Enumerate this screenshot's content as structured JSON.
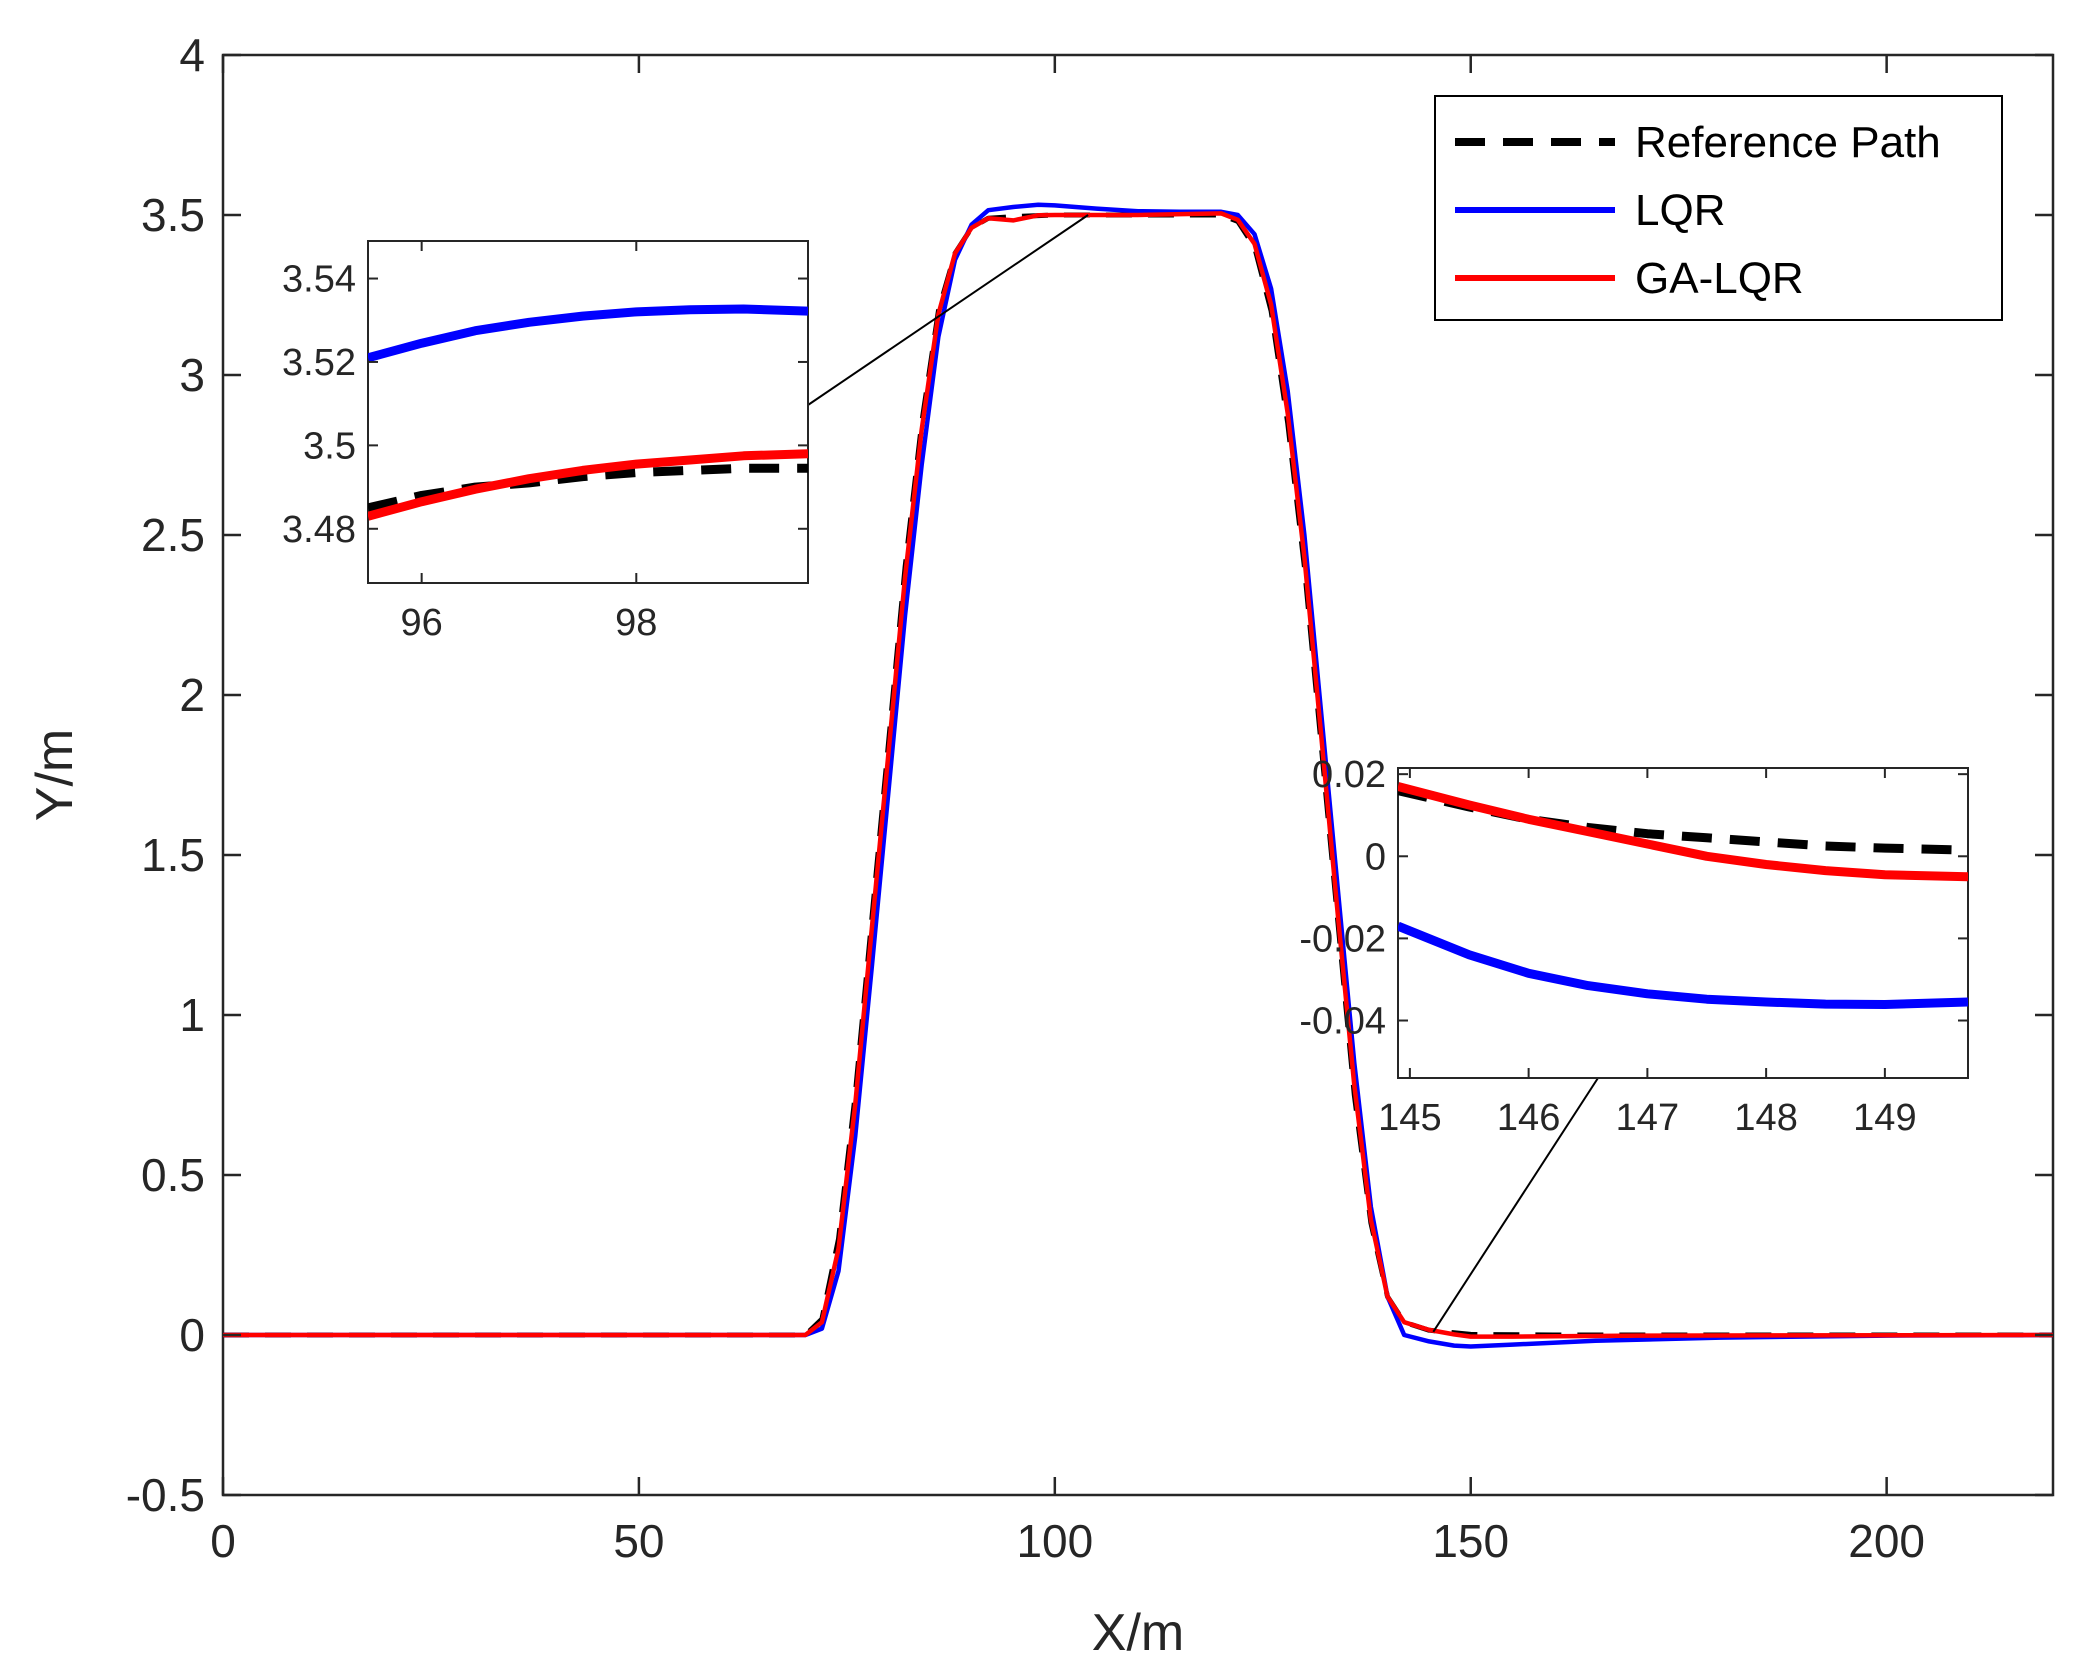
{
  "chart_data": {
    "type": "line",
    "title": "",
    "xlabel": "X/m",
    "ylabel": "Y/m",
    "xlim": [
      0,
      220
    ],
    "ylim": [
      -0.5,
      4
    ],
    "xticks": [
      0,
      50,
      100,
      150,
      200
    ],
    "xtick_labels": [
      "0",
      "50",
      "100",
      "150",
      "200"
    ],
    "yticks": [
      -0.5,
      0,
      0.5,
      1,
      1.5,
      2,
      2.5,
      3,
      3.5,
      4
    ],
    "ytick_labels": [
      "-0.5",
      "0",
      "0.5",
      "1",
      "1.5",
      "2",
      "2.5",
      "3",
      "3.5",
      "4"
    ],
    "grid": false,
    "legend_position": "top-right",
    "series": [
      {
        "name": "Reference Path",
        "color": "#000000",
        "style": "dashed",
        "points": [
          [
            0,
            0
          ],
          [
            70,
            0
          ],
          [
            72,
            0.05
          ],
          [
            74,
            0.3
          ],
          [
            76,
            0.75
          ],
          [
            78,
            1.3
          ],
          [
            80,
            1.85
          ],
          [
            82,
            2.4
          ],
          [
            84,
            2.85
          ],
          [
            86,
            3.2
          ],
          [
            88,
            3.38
          ],
          [
            90,
            3.46
          ],
          [
            92,
            3.49
          ],
          [
            95,
            3.495
          ],
          [
            100,
            3.5
          ],
          [
            110,
            3.5
          ],
          [
            120,
            3.5
          ],
          [
            122,
            3.48
          ],
          [
            124,
            3.4
          ],
          [
            126,
            3.2
          ],
          [
            128,
            2.85
          ],
          [
            130,
            2.4
          ],
          [
            132,
            1.85
          ],
          [
            134,
            1.3
          ],
          [
            136,
            0.75
          ],
          [
            138,
            0.35
          ],
          [
            140,
            0.12
          ],
          [
            142,
            0.04
          ],
          [
            145,
            0.015
          ],
          [
            150,
            0.002
          ],
          [
            160,
            0
          ],
          [
            220,
            0
          ]
        ]
      },
      {
        "name": "LQR",
        "color": "#0000ff",
        "style": "solid",
        "points": [
          [
            0,
            0
          ],
          [
            70,
            0
          ],
          [
            72,
            0.02
          ],
          [
            74,
            0.2
          ],
          [
            76,
            0.62
          ],
          [
            78,
            1.15
          ],
          [
            80,
            1.7
          ],
          [
            82,
            2.25
          ],
          [
            84,
            2.72
          ],
          [
            86,
            3.12
          ],
          [
            88,
            3.36
          ],
          [
            90,
            3.47
          ],
          [
            92,
            3.515
          ],
          [
            95,
            3.525
          ],
          [
            98,
            3.532
          ],
          [
            100,
            3.53
          ],
          [
            105,
            3.52
          ],
          [
            110,
            3.512
          ],
          [
            115,
            3.51
          ],
          [
            120,
            3.51
          ],
          [
            122,
            3.5
          ],
          [
            124,
            3.44
          ],
          [
            126,
            3.27
          ],
          [
            128,
            2.95
          ],
          [
            130,
            2.5
          ],
          [
            132,
            1.95
          ],
          [
            134,
            1.4
          ],
          [
            136,
            0.85
          ],
          [
            138,
            0.4
          ],
          [
            140,
            0.12
          ],
          [
            142,
            0.0
          ],
          [
            145,
            -0.02
          ],
          [
            148,
            -0.033
          ],
          [
            150,
            -0.036
          ],
          [
            155,
            -0.03
          ],
          [
            165,
            -0.018
          ],
          [
            180,
            -0.008
          ],
          [
            200,
            -0.002
          ],
          [
            220,
            0
          ]
        ]
      },
      {
        "name": "GA-LQR",
        "color": "#ff0000",
        "style": "solid",
        "points": [
          [
            0,
            0
          ],
          [
            70,
            0
          ],
          [
            72,
            0.04
          ],
          [
            74,
            0.27
          ],
          [
            76,
            0.72
          ],
          [
            78,
            1.27
          ],
          [
            80,
            1.82
          ],
          [
            82,
            2.37
          ],
          [
            84,
            2.83
          ],
          [
            86,
            3.19
          ],
          [
            88,
            3.38
          ],
          [
            90,
            3.46
          ],
          [
            92,
            3.49
          ],
          [
            95,
            3.483
          ],
          [
            98,
            3.499
          ],
          [
            100,
            3.5
          ],
          [
            110,
            3.5
          ],
          [
            120,
            3.505
          ],
          [
            122,
            3.485
          ],
          [
            124,
            3.41
          ],
          [
            126,
            3.22
          ],
          [
            128,
            2.88
          ],
          [
            130,
            2.43
          ],
          [
            132,
            1.88
          ],
          [
            134,
            1.32
          ],
          [
            136,
            0.78
          ],
          [
            138,
            0.36
          ],
          [
            140,
            0.12
          ],
          [
            142,
            0.04
          ],
          [
            145,
            0.016
          ],
          [
            148,
            0.002
          ],
          [
            150,
            -0.005
          ],
          [
            155,
            -0.005
          ],
          [
            170,
            -0.002
          ],
          [
            220,
            0
          ]
        ]
      }
    ],
    "insets": [
      {
        "name": "inset-upper",
        "xlim": [
          95.5,
          99.6
        ],
        "ylim": [
          3.467,
          3.549
        ],
        "xticks": [
          96,
          98
        ],
        "xtick_labels": [
          "96",
          "98"
        ],
        "yticks": [
          3.48,
          3.5,
          3.52,
          3.54
        ],
        "ytick_labels": [
          "3.48",
          "3.5",
          "3.52",
          "3.54"
        ],
        "anchor_point": [
          104,
          3.5
        ],
        "series": {
          "Reference Path": [
            [
              95.5,
              3.485
            ],
            [
              96,
              3.488
            ],
            [
              96.5,
              3.49
            ],
            [
              97,
              3.491
            ],
            [
              97.5,
              3.4925
            ],
            [
              98,
              3.4935
            ],
            [
              98.5,
              3.494
            ],
            [
              99,
              3.4945
            ],
            [
              99.6,
              3.4945
            ]
          ],
          "LQR": [
            [
              95.5,
              3.521
            ],
            [
              96,
              3.5245
            ],
            [
              96.5,
              3.5275
            ],
            [
              97,
              3.5295
            ],
            [
              97.5,
              3.531
            ],
            [
              98,
              3.532
            ],
            [
              98.5,
              3.5325
            ],
            [
              99,
              3.5327
            ],
            [
              99.6,
              3.5322
            ]
          ],
          "GA-LQR": [
            [
              95.5,
              3.483
            ],
            [
              96,
              3.4865
            ],
            [
              96.5,
              3.4895
            ],
            [
              97,
              3.492
            ],
            [
              97.5,
              3.494
            ],
            [
              98,
              3.4955
            ],
            [
              98.5,
              3.4965
            ],
            [
              99,
              3.4975
            ],
            [
              99.6,
              3.498
            ]
          ]
        }
      },
      {
        "name": "inset-lower",
        "xlim": [
          144.9,
          149.7
        ],
        "ylim": [
          -0.054,
          0.0215
        ],
        "xticks": [
          145,
          146,
          147,
          148,
          149
        ],
        "xtick_labels": [
          "145",
          "146",
          "147",
          "148",
          "149"
        ],
        "yticks": [
          -0.04,
          -0.02,
          0,
          0.02
        ],
        "ytick_labels": [
          "-0.04",
          "-0.02",
          "0",
          "0.02"
        ],
        "anchor_point": [
          145.5,
          0.01
        ],
        "series": {
          "Reference Path": [
            [
              144.9,
              0.016
            ],
            [
              145.5,
              0.012
            ],
            [
              146,
              0.009
            ],
            [
              146.5,
              0.007
            ],
            [
              147,
              0.0055
            ],
            [
              147.5,
              0.0045
            ],
            [
              148,
              0.0035
            ],
            [
              148.5,
              0.0025
            ],
            [
              149,
              0.002
            ],
            [
              149.7,
              0.0015
            ]
          ],
          "LQR": [
            [
              144.9,
              -0.017
            ],
            [
              145.5,
              -0.024
            ],
            [
              146,
              -0.0285
            ],
            [
              146.5,
              -0.0315
            ],
            [
              147,
              -0.0335
            ],
            [
              147.5,
              -0.0348
            ],
            [
              148,
              -0.0355
            ],
            [
              148.5,
              -0.036
            ],
            [
              149,
              -0.0361
            ],
            [
              149.7,
              -0.0355
            ]
          ],
          "GA-LQR": [
            [
              144.9,
              0.017
            ],
            [
              145.5,
              0.0125
            ],
            [
              146,
              0.009
            ],
            [
              146.5,
              0.006
            ],
            [
              147,
              0.003
            ],
            [
              147.5,
              0.0
            ],
            [
              148,
              -0.002
            ],
            [
              148.5,
              -0.0035
            ],
            [
              149,
              -0.0045
            ],
            [
              149.7,
              -0.005
            ]
          ]
        }
      }
    ]
  }
}
